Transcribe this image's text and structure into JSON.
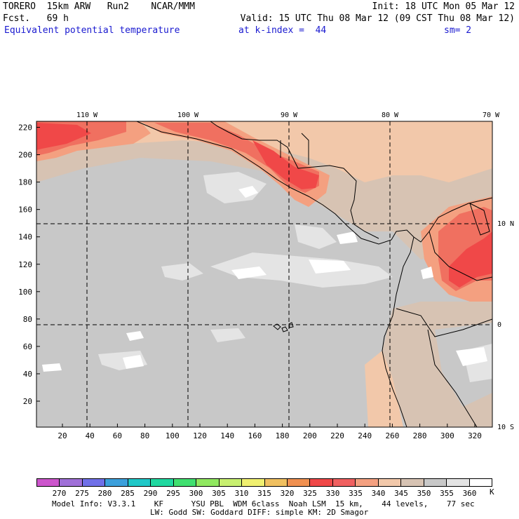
{
  "header": {
    "line1_left": "TORERO  15km ARW   Run2    NCAR/MMM",
    "line1_right": "Init: 18 UTC Mon 05 Mar 12",
    "line2_left": "Fcst.   69 h",
    "line2_right": "Valid: 15 UTC Thu 08 Mar 12 (09 CST Thu 08 Mar 12)",
    "field_name": "Equivalent potential temperature",
    "level": "at k-index =  44",
    "smoothing": "sm= 2"
  },
  "map": {
    "lon_labels": [
      "110 W",
      "100 W",
      "90 W",
      "80 W",
      "70 W"
    ],
    "lat_labels": [
      "10 N",
      "0",
      "10 S"
    ],
    "x_ticks": [
      "20",
      "40",
      "60",
      "80",
      "100",
      "120",
      "140",
      "160",
      "180",
      "200",
      "220",
      "240",
      "260",
      "280",
      "300",
      "320"
    ],
    "y_ticks": [
      "20",
      "40",
      "60",
      "80",
      "100",
      "120",
      "140",
      "160",
      "180",
      "200",
      "220"
    ],
    "colors": {
      "ocean_grey": "#c8c8c8",
      "light_grey": "#e4e4e4",
      "tan_grey": "#d7c3b3",
      "peach": "#f2c8aa",
      "salmon": "#f4a080",
      "orange_red": "#f07060",
      "red": "#f04848",
      "white": "#ffffff"
    }
  },
  "colorbar": {
    "levels": [
      "270",
      "275",
      "280",
      "285",
      "290",
      "295",
      "300",
      "305",
      "310",
      "315",
      "320",
      "325",
      "330",
      "335",
      "340",
      "345",
      "350",
      "355",
      "360"
    ],
    "unit": "K",
    "colors": [
      "#cc55cc",
      "#a070d8",
      "#7070e8",
      "#3ca0dc",
      "#20c8c8",
      "#20d8a0",
      "#40e070",
      "#90e860",
      "#c8f070",
      "#f0f070",
      "#f0c060",
      "#f09050",
      "#f04848",
      "#f06060",
      "#f4a080",
      "#f2c8aa",
      "#d7c3b3",
      "#c8c8c8",
      "#e4e4e4",
      "#ffffff"
    ]
  },
  "footer": {
    "line1": "Model Info: V3.3.1    KF      YSU PBL  WDM 6class  Noah LSM  15 km,    44 levels,    77 sec",
    "line2": "LW: Godd SW: Goddard DIFF: simple KM: 2D Smagor"
  }
}
